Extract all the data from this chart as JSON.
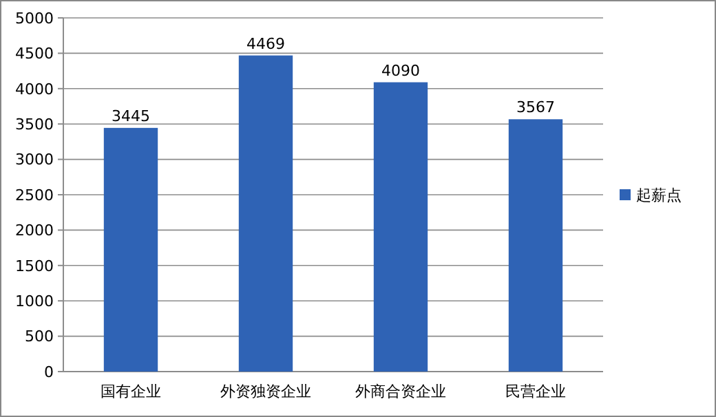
{
  "chart_data": {
    "type": "bar",
    "categories": [
      "国有企业",
      "外资独资企业",
      "外商合资企业",
      "民营企业"
    ],
    "series": [
      {
        "name": "起薪点",
        "color": "#2f63b5",
        "values": [
          3445,
          4469,
          4090,
          3567
        ]
      }
    ],
    "ylim": [
      0,
      5000
    ],
    "yticks": [
      0,
      500,
      1000,
      1500,
      2000,
      2500,
      3000,
      3500,
      4000,
      4500,
      5000
    ],
    "grid": "y",
    "legend": "right",
    "data_labels": true
  }
}
